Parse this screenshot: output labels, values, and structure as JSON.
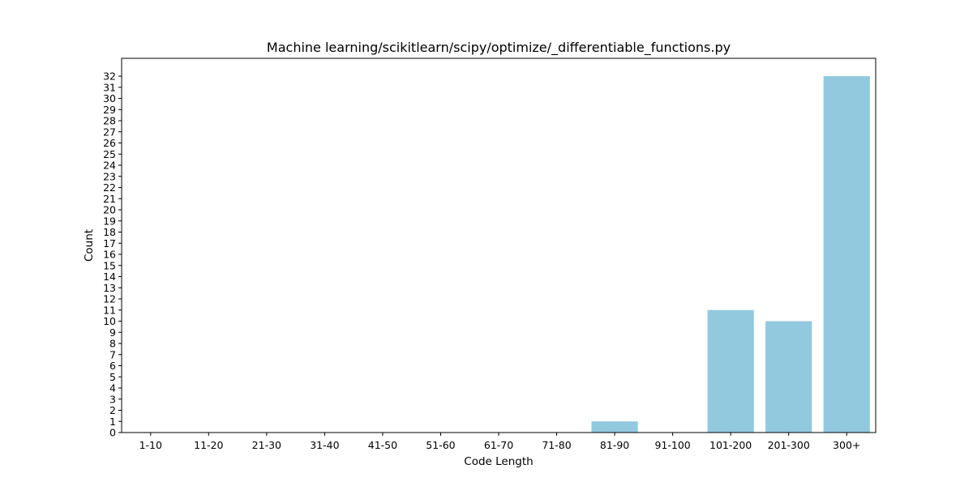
{
  "chart_data": {
    "type": "bar",
    "title": "Machine learning/scikitlearn/scipy/optimize/_differentiable_functions.py",
    "xlabel": "Code Length",
    "ylabel": "Count",
    "categories": [
      "1-10",
      "11-20",
      "21-30",
      "31-40",
      "41-50",
      "51-60",
      "61-70",
      "71-80",
      "81-90",
      "91-100",
      "101-200",
      "201-300",
      "300+"
    ],
    "values": [
      0,
      0,
      0,
      0,
      0,
      0,
      0,
      0,
      1,
      0,
      11,
      10,
      32
    ],
    "ylim": [
      0,
      33.6
    ],
    "yticks": [
      0,
      1,
      2,
      3,
      4,
      5,
      6,
      7,
      8,
      9,
      10,
      11,
      12,
      13,
      14,
      15,
      16,
      17,
      18,
      19,
      20,
      21,
      22,
      23,
      24,
      25,
      26,
      27,
      28,
      29,
      30,
      31,
      32
    ],
    "grid": false,
    "bar_color": "#92c9df"
  }
}
